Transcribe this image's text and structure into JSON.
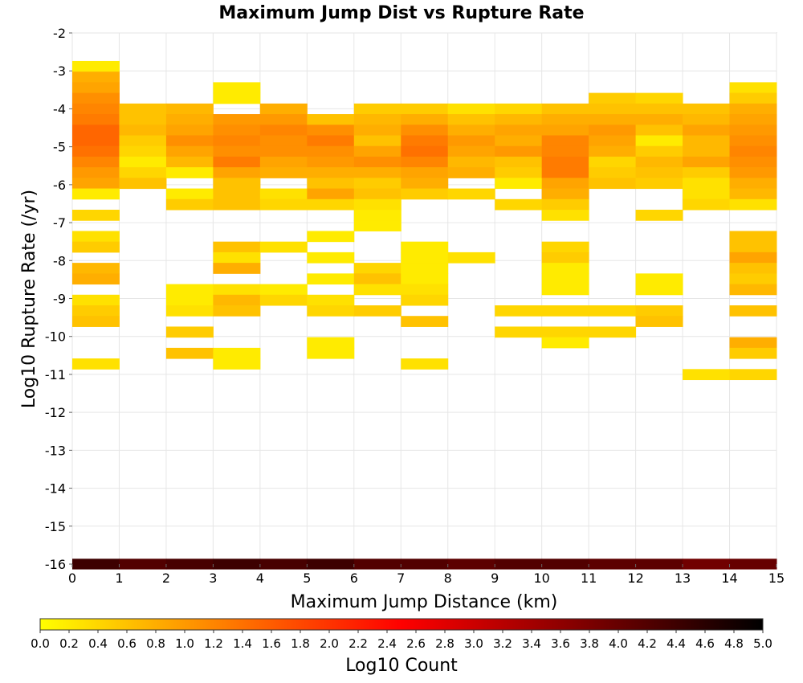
{
  "chart_data": {
    "type": "heatmap",
    "title": "Maximum Jump Dist vs Rupture Rate",
    "xlabel": "Maximum Jump Distance (km)",
    "ylabel": "Log10 Rupture Rate (/yr)",
    "xlim": [
      0,
      15
    ],
    "ylim": [
      -16,
      -2
    ],
    "x_ticks": [
      "0",
      "1",
      "2",
      "3",
      "4",
      "5",
      "6",
      "7",
      "8",
      "9",
      "10",
      "11",
      "12",
      "13",
      "14",
      "15"
    ],
    "y_ticks": [
      "-2",
      "-3",
      "-4",
      "-5",
      "-6",
      "-7",
      "-8",
      "-9",
      "-10",
      "-11",
      "-12",
      "-13",
      "-14",
      "-15",
      "-16"
    ],
    "x_bin_width": 1,
    "y_bin_height": 0.28,
    "grid": true,
    "colorbar": {
      "label": "Log10 Count",
      "min": 0.0,
      "max": 5.0,
      "ticks": [
        "0.0",
        "0.2",
        "0.4",
        "0.6",
        "0.8",
        "1.0",
        "1.2",
        "1.4",
        "1.6",
        "1.8",
        "2.0",
        "2.2",
        "2.4",
        "2.6",
        "2.8",
        "3.0",
        "3.2",
        "3.4",
        "3.6",
        "3.8",
        "4.0",
        "4.2",
        "4.4",
        "4.6",
        "4.8",
        "5.0"
      ],
      "colors": [
        "#ffff00",
        "#ff8000",
        "#ff0000",
        "#800000",
        "#000000"
      ]
    },
    "bottom_band": {
      "y": -16,
      "values": [
        4.4,
        4.2,
        4.3,
        4.4,
        4.3,
        4.4,
        4.2,
        4.2,
        4.1,
        4.2,
        4.2,
        4.1,
        4.1,
        3.9,
        4.0
      ]
    },
    "columns": [
      {
        "x": 0,
        "cells": [
          {
            "y": -2.88,
            "v": 0.2
          },
          {
            "y": -3.16,
            "v": 0.8
          },
          {
            "y": -3.44,
            "v": 0.9
          },
          {
            "y": -3.72,
            "v": 1.1
          },
          {
            "y": -4.0,
            "v": 1.2
          },
          {
            "y": -4.28,
            "v": 1.3
          },
          {
            "y": -4.56,
            "v": 1.5
          },
          {
            "y": -4.84,
            "v": 1.5
          },
          {
            "y": -5.12,
            "v": 1.4
          },
          {
            "y": -5.4,
            "v": 1.2
          },
          {
            "y": -5.68,
            "v": 1.0
          },
          {
            "y": -5.96,
            "v": 0.9
          },
          {
            "y": -6.24,
            "v": 0.2
          },
          {
            "y": -6.8,
            "v": 0.4
          },
          {
            "y": -7.36,
            "v": 0.3
          },
          {
            "y": -7.64,
            "v": 0.5
          },
          {
            "y": -8.2,
            "v": 0.7
          },
          {
            "y": -8.48,
            "v": 0.8
          },
          {
            "y": -9.04,
            "v": 0.3
          },
          {
            "y": -9.32,
            "v": 0.5
          },
          {
            "y": -9.6,
            "v": 0.6
          },
          {
            "y": -10.72,
            "v": 0.3
          }
        ]
      },
      {
        "x": 1,
        "cells": [
          {
            "y": -4.0,
            "v": 0.6
          },
          {
            "y": -4.28,
            "v": 0.6
          },
          {
            "y": -4.56,
            "v": 0.7
          },
          {
            "y": -4.84,
            "v": 0.5
          },
          {
            "y": -5.12,
            "v": 0.4
          },
          {
            "y": -5.4,
            "v": 0.2
          },
          {
            "y": -5.68,
            "v": 0.4
          },
          {
            "y": -5.96,
            "v": 0.6
          }
        ]
      },
      {
        "x": 2,
        "cells": [
          {
            "y": -4.0,
            "v": 0.7
          },
          {
            "y": -4.28,
            "v": 0.8
          },
          {
            "y": -4.56,
            "v": 0.9
          },
          {
            "y": -4.84,
            "v": 1.1
          },
          {
            "y": -5.12,
            "v": 0.9
          },
          {
            "y": -5.4,
            "v": 0.7
          },
          {
            "y": -5.68,
            "v": 0.2
          },
          {
            "y": -6.24,
            "v": 0.2
          },
          {
            "y": -6.52,
            "v": 0.5
          },
          {
            "y": -8.76,
            "v": 0.2
          },
          {
            "y": -9.04,
            "v": 0.2
          },
          {
            "y": -9.32,
            "v": 0.3
          },
          {
            "y": -9.88,
            "v": 0.5
          },
          {
            "y": -10.44,
            "v": 0.6
          }
        ]
      },
      {
        "x": 3,
        "cells": [
          {
            "y": -3.44,
            "v": 0.2
          },
          {
            "y": -3.72,
            "v": 0.2
          },
          {
            "y": -4.28,
            "v": 1.0
          },
          {
            "y": -4.56,
            "v": 1.1
          },
          {
            "y": -4.84,
            "v": 1.2
          },
          {
            "y": -5.12,
            "v": 1.1
          },
          {
            "y": -5.4,
            "v": 1.3
          },
          {
            "y": -5.68,
            "v": 0.9
          },
          {
            "y": -5.96,
            "v": 0.6
          },
          {
            "y": -6.24,
            "v": 0.6
          },
          {
            "y": -6.52,
            "v": 0.6
          },
          {
            "y": -7.64,
            "v": 0.6
          },
          {
            "y": -7.92,
            "v": 0.3
          },
          {
            "y": -8.2,
            "v": 0.8
          },
          {
            "y": -8.76,
            "v": 0.3
          },
          {
            "y": -9.04,
            "v": 0.7
          },
          {
            "y": -9.32,
            "v": 0.6
          },
          {
            "y": -10.44,
            "v": 0.2
          },
          {
            "y": -10.72,
            "v": 0.2
          }
        ]
      },
      {
        "x": 4,
        "cells": [
          {
            "y": -4.0,
            "v": 0.8
          },
          {
            "y": -4.28,
            "v": 1.0
          },
          {
            "y": -4.56,
            "v": 1.2
          },
          {
            "y": -4.84,
            "v": 1.1
          },
          {
            "y": -5.12,
            "v": 1.1
          },
          {
            "y": -5.4,
            "v": 0.9
          },
          {
            "y": -5.68,
            "v": 0.8
          },
          {
            "y": -6.24,
            "v": 0.3
          },
          {
            "y": -6.52,
            "v": 0.4
          },
          {
            "y": -7.64,
            "v": 0.3
          },
          {
            "y": -8.76,
            "v": 0.2
          },
          {
            "y": -9.04,
            "v": 0.4
          }
        ]
      },
      {
        "x": 5,
        "cells": [
          {
            "y": -4.28,
            "v": 0.6
          },
          {
            "y": -4.56,
            "v": 1.1
          },
          {
            "y": -4.84,
            "v": 1.3
          },
          {
            "y": -5.12,
            "v": 1.1
          },
          {
            "y": -5.4,
            "v": 1.0
          },
          {
            "y": -5.68,
            "v": 0.8
          },
          {
            "y": -5.96,
            "v": 0.6
          },
          {
            "y": -6.24,
            "v": 0.9
          },
          {
            "y": -6.52,
            "v": 0.4
          },
          {
            "y": -7.36,
            "v": 0.2
          },
          {
            "y": -7.92,
            "v": 0.2
          },
          {
            "y": -8.48,
            "v": 0.2
          },
          {
            "y": -9.04,
            "v": 0.3
          },
          {
            "y": -9.32,
            "v": 0.4
          },
          {
            "y": -10.16,
            "v": 0.2
          },
          {
            "y": -10.44,
            "v": 0.2
          }
        ]
      },
      {
        "x": 6,
        "cells": [
          {
            "y": -4.0,
            "v": 0.5
          },
          {
            "y": -4.28,
            "v": 0.7
          },
          {
            "y": -4.56,
            "v": 0.8
          },
          {
            "y": -4.84,
            "v": 0.6
          },
          {
            "y": -5.12,
            "v": 0.9
          },
          {
            "y": -5.4,
            "v": 1.1
          },
          {
            "y": -5.68,
            "v": 0.8
          },
          {
            "y": -5.96,
            "v": 0.5
          },
          {
            "y": -6.24,
            "v": 0.6
          },
          {
            "y": -6.52,
            "v": 0.3
          },
          {
            "y": -6.8,
            "v": 0.2
          },
          {
            "y": -7.08,
            "v": 0.2
          },
          {
            "y": -8.2,
            "v": 0.4
          },
          {
            "y": -8.48,
            "v": 0.6
          },
          {
            "y": -8.76,
            "v": 0.3
          },
          {
            "y": -9.32,
            "v": 0.5
          }
        ]
      },
      {
        "x": 7,
        "cells": [
          {
            "y": -4.0,
            "v": 0.5
          },
          {
            "y": -4.28,
            "v": 0.8
          },
          {
            "y": -4.56,
            "v": 1.1
          },
          {
            "y": -4.84,
            "v": 1.3
          },
          {
            "y": -5.12,
            "v": 1.4
          },
          {
            "y": -5.4,
            "v": 1.2
          },
          {
            "y": -5.68,
            "v": 0.9
          },
          {
            "y": -5.96,
            "v": 0.8
          },
          {
            "y": -6.24,
            "v": 0.5
          },
          {
            "y": -7.64,
            "v": 0.2
          },
          {
            "y": -7.92,
            "v": 0.2
          },
          {
            "y": -8.2,
            "v": 0.2
          },
          {
            "y": -8.48,
            "v": 0.2
          },
          {
            "y": -8.76,
            "v": 0.3
          },
          {
            "y": -9.04,
            "v": 0.4
          },
          {
            "y": -9.6,
            "v": 0.6
          },
          {
            "y": -10.72,
            "v": 0.3
          }
        ]
      },
      {
        "x": 8,
        "cells": [
          {
            "y": -4.0,
            "v": 0.3
          },
          {
            "y": -4.28,
            "v": 0.6
          },
          {
            "y": -4.56,
            "v": 0.8
          },
          {
            "y": -4.84,
            "v": 1.0
          },
          {
            "y": -5.12,
            "v": 0.9
          },
          {
            "y": -5.4,
            "v": 0.7
          },
          {
            "y": -5.68,
            "v": 0.8
          },
          {
            "y": -6.24,
            "v": 0.4
          },
          {
            "y": -7.92,
            "v": 0.3
          }
        ]
      },
      {
        "x": 9,
        "cells": [
          {
            "y": -4.0,
            "v": 0.4
          },
          {
            "y": -4.28,
            "v": 0.7
          },
          {
            "y": -4.56,
            "v": 0.9
          },
          {
            "y": -4.84,
            "v": 0.8
          },
          {
            "y": -5.12,
            "v": 1.0
          },
          {
            "y": -5.4,
            "v": 0.6
          },
          {
            "y": -5.68,
            "v": 0.5
          },
          {
            "y": -5.96,
            "v": 0.2
          },
          {
            "y": -6.52,
            "v": 0.4
          },
          {
            "y": -9.32,
            "v": 0.4
          },
          {
            "y": -9.88,
            "v": 0.4
          }
        ]
      },
      {
        "x": 10,
        "cells": [
          {
            "y": -4.0,
            "v": 0.6
          },
          {
            "y": -4.28,
            "v": 0.8
          },
          {
            "y": -4.56,
            "v": 0.9
          },
          {
            "y": -4.84,
            "v": 1.2
          },
          {
            "y": -5.12,
            "v": 1.2
          },
          {
            "y": -5.4,
            "v": 1.3
          },
          {
            "y": -5.68,
            "v": 1.3
          },
          {
            "y": -5.96,
            "v": 0.9
          },
          {
            "y": -6.24,
            "v": 0.8
          },
          {
            "y": -6.52,
            "v": 0.5
          },
          {
            "y": -6.8,
            "v": 0.3
          },
          {
            "y": -7.64,
            "v": 0.4
          },
          {
            "y": -7.92,
            "v": 0.5
          },
          {
            "y": -8.2,
            "v": 0.2
          },
          {
            "y": -8.48,
            "v": 0.2
          },
          {
            "y": -8.76,
            "v": 0.2
          },
          {
            "y": -9.32,
            "v": 0.4
          },
          {
            "y": -9.88,
            "v": 0.4
          },
          {
            "y": -10.16,
            "v": 0.2
          }
        ]
      },
      {
        "x": 11,
        "cells": [
          {
            "y": -3.72,
            "v": 0.5
          },
          {
            "y": -4.0,
            "v": 0.6
          },
          {
            "y": -4.28,
            "v": 0.8
          },
          {
            "y": -4.56,
            "v": 1.0
          },
          {
            "y": -4.84,
            "v": 0.9
          },
          {
            "y": -5.12,
            "v": 0.8
          },
          {
            "y": -5.4,
            "v": 0.4
          },
          {
            "y": -5.68,
            "v": 0.5
          },
          {
            "y": -5.96,
            "v": 0.6
          },
          {
            "y": -9.32,
            "v": 0.4
          },
          {
            "y": -9.88,
            "v": 0.4
          }
        ]
      },
      {
        "x": 12,
        "cells": [
          {
            "y": -3.72,
            "v": 0.4
          },
          {
            "y": -4.0,
            "v": 0.6
          },
          {
            "y": -4.28,
            "v": 0.8
          },
          {
            "y": -4.56,
            "v": 0.6
          },
          {
            "y": -4.84,
            "v": 0.2
          },
          {
            "y": -5.12,
            "v": 0.5
          },
          {
            "y": -5.4,
            "v": 0.7
          },
          {
            "y": -5.68,
            "v": 0.6
          },
          {
            "y": -5.96,
            "v": 0.5
          },
          {
            "y": -6.8,
            "v": 0.4
          },
          {
            "y": -8.48,
            "v": 0.2
          },
          {
            "y": -8.76,
            "v": 0.2
          },
          {
            "y": -9.32,
            "v": 0.5
          },
          {
            "y": -9.6,
            "v": 0.6
          }
        ]
      },
      {
        "x": 13,
        "cells": [
          {
            "y": -4.0,
            "v": 0.6
          },
          {
            "y": -4.28,
            "v": 0.7
          },
          {
            "y": -4.56,
            "v": 0.9
          },
          {
            "y": -4.84,
            "v": 0.7
          },
          {
            "y": -5.12,
            "v": 0.7
          },
          {
            "y": -5.4,
            "v": 0.9
          },
          {
            "y": -5.68,
            "v": 0.5
          },
          {
            "y": -5.96,
            "v": 0.3
          },
          {
            "y": -6.24,
            "v": 0.3
          },
          {
            "y": -6.52,
            "v": 0.4
          },
          {
            "y": -11.0,
            "v": 0.3
          }
        ]
      },
      {
        "x": 14,
        "cells": [
          {
            "y": -3.44,
            "v": 0.3
          },
          {
            "y": -3.72,
            "v": 0.5
          },
          {
            "y": -4.0,
            "v": 0.8
          },
          {
            "y": -4.28,
            "v": 0.9
          },
          {
            "y": -4.56,
            "v": 1.0
          },
          {
            "y": -4.84,
            "v": 1.1
          },
          {
            "y": -5.12,
            "v": 1.2
          },
          {
            "y": -5.4,
            "v": 1.1
          },
          {
            "y": -5.68,
            "v": 1.0
          },
          {
            "y": -5.96,
            "v": 0.8
          },
          {
            "y": -6.24,
            "v": 0.7
          },
          {
            "y": -6.52,
            "v": 0.3
          },
          {
            "y": -7.36,
            "v": 0.6
          },
          {
            "y": -7.64,
            "v": 0.6
          },
          {
            "y": -7.92,
            "v": 0.9
          },
          {
            "y": -8.2,
            "v": 0.6
          },
          {
            "y": -8.48,
            "v": 0.5
          },
          {
            "y": -8.76,
            "v": 0.7
          },
          {
            "y": -9.32,
            "v": 0.6
          },
          {
            "y": -10.16,
            "v": 0.8
          },
          {
            "y": -10.44,
            "v": 0.5
          },
          {
            "y": -11.0,
            "v": 0.4
          }
        ]
      }
    ]
  }
}
